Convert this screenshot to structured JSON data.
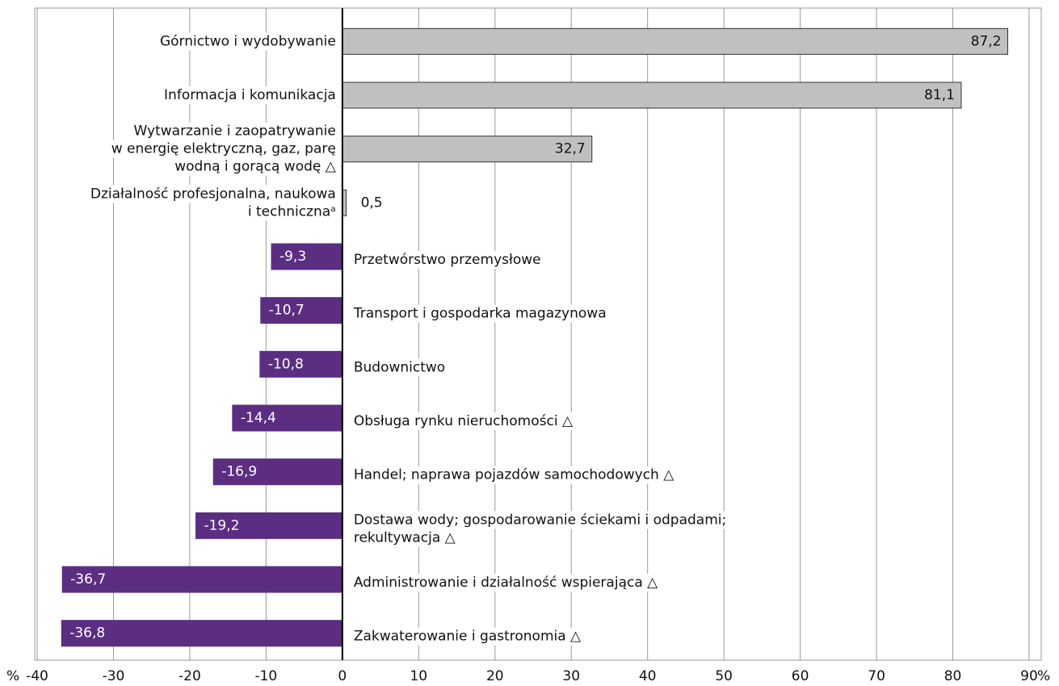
{
  "chart_data": {
    "type": "bar",
    "orientation": "horizontal",
    "categories": [
      [
        "Górnictwo i wydobywanie"
      ],
      [
        "Informacja i komunikacja"
      ],
      [
        "Wytwarzanie i zaopatrywanie",
        "w energię elektryczną, gaz,  parę",
        "wodną i gorącą  wodę △"
      ],
      [
        "Działalność profesjonalna, naukowa",
        "i technicznaᵃ"
      ],
      [
        "Przetwórstwo przemysłowe"
      ],
      [
        "Transport i gospodarka magazynowa"
      ],
      [
        "Budownictwo"
      ],
      [
        "Obsługa rynku nieruchomości △"
      ],
      [
        "Handel; naprawa pojazdów samochodowych △"
      ],
      [
        "Dostawa wody; gospodarowanie ściekami i odpadami;",
        "rekultywacja △"
      ],
      [
        "Administrowanie i działalność wspierająca △"
      ],
      [
        "Zakwaterowanie i gastronomia △"
      ]
    ],
    "values": [
      87.2,
      81.1,
      32.7,
      0.5,
      -9.3,
      -10.7,
      -10.8,
      -14.4,
      -16.9,
      -19.2,
      -36.7,
      -36.8
    ],
    "value_labels": [
      "87,2",
      "81,1",
      "32,7",
      "0,5",
      "-9,3",
      "-10,7",
      "-10,8",
      "-14,4",
      "-16,9",
      "-19,2",
      "-36,7",
      "-36,8"
    ],
    "positive_color": "#c0c0c0",
    "negative_color": "#5b2e82",
    "xlim": [
      -40,
      90
    ],
    "xticks": [
      -40,
      -30,
      -20,
      -10,
      0,
      10,
      20,
      30,
      40,
      50,
      60,
      70,
      80,
      90
    ],
    "x_unit": "%",
    "grid": true
  }
}
